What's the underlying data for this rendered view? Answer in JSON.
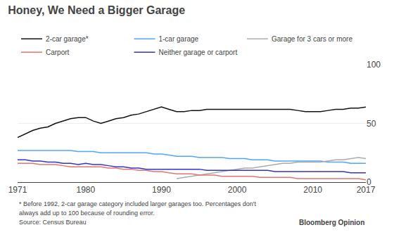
{
  "chart_data": {
    "type": "line",
    "title": "Honey, We Need a Bigger Garage",
    "x": [
      1971,
      1972,
      1973,
      1974,
      1975,
      1976,
      1977,
      1978,
      1979,
      1980,
      1981,
      1982,
      1983,
      1984,
      1985,
      1986,
      1987,
      1988,
      1989,
      1990,
      1991,
      1992,
      1993,
      1994,
      1995,
      1996,
      1997,
      1998,
      1999,
      2000,
      2001,
      2002,
      2003,
      2004,
      2005,
      2006,
      2007,
      2008,
      2009,
      2010,
      2011,
      2012,
      2013,
      2014,
      2015,
      2016,
      2017
    ],
    "series": [
      {
        "name": "2-car garage*",
        "color": "#111111",
        "values": [
          38,
          41,
          44,
          46,
          47,
          50,
          52,
          54,
          55,
          55,
          52,
          50,
          52,
          54,
          55,
          57,
          58,
          60,
          62,
          64,
          62,
          60,
          60,
          61,
          61,
          62,
          62,
          62,
          62,
          62,
          62,
          62,
          62,
          62,
          62,
          62,
          62,
          61,
          60,
          60,
          60,
          61,
          62,
          62,
          63,
          63,
          64
        ]
      },
      {
        "name": "1-car garage",
        "color": "#4da6ff",
        "values": [
          27,
          27,
          27,
          27,
          27,
          27,
          27,
          27,
          26,
          26,
          26,
          25,
          25,
          25,
          25,
          25,
          25,
          25,
          24,
          24,
          23,
          22,
          22,
          22,
          21,
          21,
          21,
          21,
          20,
          20,
          20,
          19,
          19,
          19,
          18,
          18,
          18,
          18,
          18,
          18,
          18,
          17,
          17,
          17,
          16,
          16,
          16
        ]
      },
      {
        "name": "Garage for 3 cars or more",
        "color": "#aaaaaa",
        "values": [
          null,
          null,
          null,
          null,
          null,
          null,
          null,
          null,
          null,
          null,
          null,
          null,
          null,
          null,
          null,
          null,
          null,
          null,
          null,
          null,
          null,
          3,
          4,
          5,
          6,
          7,
          8,
          9,
          10,
          11,
          12,
          12,
          13,
          14,
          15,
          16,
          16,
          17,
          17,
          17,
          17,
          18,
          19,
          19,
          20,
          21,
          20
        ]
      },
      {
        "name": "Carport",
        "color": "#e8736e",
        "values": [
          16,
          16,
          16,
          15,
          15,
          15,
          14,
          13,
          13,
          13,
          13,
          13,
          12,
          12,
          11,
          11,
          10,
          10,
          9,
          9,
          8,
          7,
          7,
          7,
          6,
          6,
          6,
          5,
          5,
          5,
          5,
          5,
          4,
          4,
          4,
          4,
          4,
          3,
          3,
          3,
          3,
          3,
          3,
          3,
          3,
          3,
          2
        ]
      },
      {
        "name": "Neither garage or carport",
        "color": "#3333cc",
        "values": [
          19,
          19,
          18,
          18,
          17,
          17,
          16,
          16,
          15,
          16,
          15,
          15,
          14,
          13,
          13,
          12,
          12,
          11,
          11,
          11,
          11,
          11,
          11,
          11,
          11,
          10,
          10,
          10,
          10,
          10,
          10,
          10,
          10,
          10,
          9,
          9,
          9,
          9,
          9,
          9,
          9,
          9,
          9,
          9,
          8,
          8,
          8
        ]
      }
    ],
    "xlim": [
      1971,
      2017
    ],
    "xticks": [
      1971,
      1980,
      1990,
      2000,
      2010,
      2017
    ],
    "ylim": [
      0,
      100
    ],
    "yticks": [
      0,
      50,
      100
    ],
    "grid": true,
    "legend": "top",
    "annotations": [
      "* Before 1992, 2-car garage category included larger garages too. Percentages don't",
      "always add up to 100 because of rounding error.",
      "Source: Census Bureau",
      "Bloomberg Opinion"
    ]
  }
}
